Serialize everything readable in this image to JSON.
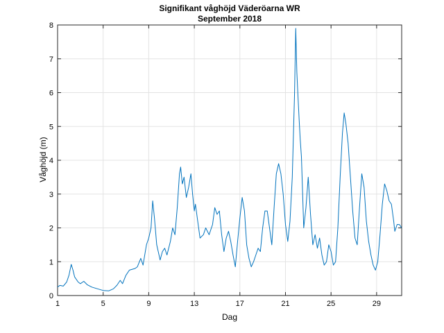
{
  "chart_data": {
    "type": "line",
    "title": "Signifikant våghöjd Väderöarna WR",
    "subtitle": "September 2018",
    "xlabel": "Dag",
    "ylabel": "Våghöjd (m)",
    "xlim": [
      1,
      31.2
    ],
    "ylim": [
      0,
      8
    ],
    "xticks": [
      1,
      5,
      9,
      13,
      17,
      21,
      25,
      29
    ],
    "yticks": [
      0,
      1,
      2,
      3,
      4,
      5,
      6,
      7,
      8
    ],
    "grid": true,
    "line_color": "#0072BD",
    "series": [
      {
        "points": [
          [
            1.0,
            0.25
          ],
          [
            1.2,
            0.3
          ],
          [
            1.5,
            0.28
          ],
          [
            1.8,
            0.4
          ],
          [
            2.0,
            0.6
          ],
          [
            2.2,
            0.92
          ],
          [
            2.35,
            0.75
          ],
          [
            2.5,
            0.55
          ],
          [
            2.8,
            0.4
          ],
          [
            3.0,
            0.35
          ],
          [
            3.3,
            0.42
          ],
          [
            3.6,
            0.32
          ],
          [
            4.0,
            0.25
          ],
          [
            4.5,
            0.2
          ],
          [
            5.0,
            0.15
          ],
          [
            5.5,
            0.14
          ],
          [
            5.9,
            0.2
          ],
          [
            6.2,
            0.3
          ],
          [
            6.5,
            0.45
          ],
          [
            6.7,
            0.35
          ],
          [
            7.0,
            0.6
          ],
          [
            7.3,
            0.75
          ],
          [
            7.8,
            0.8
          ],
          [
            8.0,
            0.85
          ],
          [
            8.3,
            1.1
          ],
          [
            8.5,
            0.9
          ],
          [
            8.8,
            1.5
          ],
          [
            9.0,
            1.7
          ],
          [
            9.2,
            2.0
          ],
          [
            9.35,
            2.8
          ],
          [
            9.5,
            2.3
          ],
          [
            9.7,
            1.5
          ],
          [
            9.9,
            1.2
          ],
          [
            10.0,
            1.05
          ],
          [
            10.2,
            1.3
          ],
          [
            10.4,
            1.4
          ],
          [
            10.6,
            1.2
          ],
          [
            10.9,
            1.6
          ],
          [
            11.1,
            2.0
          ],
          [
            11.3,
            1.8
          ],
          [
            11.5,
            2.6
          ],
          [
            11.7,
            3.6
          ],
          [
            11.8,
            3.8
          ],
          [
            11.95,
            3.3
          ],
          [
            12.1,
            3.5
          ],
          [
            12.3,
            2.9
          ],
          [
            12.5,
            3.2
          ],
          [
            12.7,
            3.6
          ],
          [
            12.85,
            3.0
          ],
          [
            13.0,
            2.5
          ],
          [
            13.1,
            2.7
          ],
          [
            13.3,
            2.2
          ],
          [
            13.5,
            1.7
          ],
          [
            13.8,
            1.8
          ],
          [
            14.0,
            2.0
          ],
          [
            14.3,
            1.8
          ],
          [
            14.6,
            2.1
          ],
          [
            14.8,
            2.6
          ],
          [
            15.0,
            2.4
          ],
          [
            15.2,
            2.5
          ],
          [
            15.4,
            1.8
          ],
          [
            15.6,
            1.3
          ],
          [
            15.8,
            1.7
          ],
          [
            16.0,
            1.9
          ],
          [
            16.2,
            1.6
          ],
          [
            16.4,
            1.2
          ],
          [
            16.6,
            0.85
          ],
          [
            16.8,
            1.6
          ],
          [
            17.0,
            2.3
          ],
          [
            17.2,
            2.9
          ],
          [
            17.4,
            2.5
          ],
          [
            17.6,
            1.5
          ],
          [
            17.8,
            1.1
          ],
          [
            18.0,
            0.85
          ],
          [
            18.2,
            1.0
          ],
          [
            18.4,
            1.2
          ],
          [
            18.6,
            1.4
          ],
          [
            18.8,
            1.3
          ],
          [
            19.0,
            2.0
          ],
          [
            19.2,
            2.5
          ],
          [
            19.4,
            2.5
          ],
          [
            19.6,
            2.0
          ],
          [
            19.8,
            1.5
          ],
          [
            20.0,
            2.6
          ],
          [
            20.2,
            3.6
          ],
          [
            20.4,
            3.9
          ],
          [
            20.6,
            3.6
          ],
          [
            20.8,
            3.0
          ],
          [
            21.0,
            2.1
          ],
          [
            21.2,
            1.6
          ],
          [
            21.4,
            2.2
          ],
          [
            21.6,
            3.5
          ],
          [
            21.8,
            6.0
          ],
          [
            21.9,
            7.9
          ],
          [
            22.0,
            6.6
          ],
          [
            22.1,
            5.9
          ],
          [
            22.2,
            5.2
          ],
          [
            22.3,
            4.6
          ],
          [
            22.4,
            4.1
          ],
          [
            22.6,
            2.0
          ],
          [
            22.8,
            2.6
          ],
          [
            23.0,
            3.5
          ],
          [
            23.2,
            2.4
          ],
          [
            23.4,
            1.5
          ],
          [
            23.6,
            1.8
          ],
          [
            23.8,
            1.4
          ],
          [
            24.0,
            1.7
          ],
          [
            24.2,
            1.2
          ],
          [
            24.4,
            0.9
          ],
          [
            24.6,
            1.0
          ],
          [
            24.8,
            1.5
          ],
          [
            25.0,
            1.3
          ],
          [
            25.2,
            0.9
          ],
          [
            25.4,
            1.0
          ],
          [
            25.6,
            2.0
          ],
          [
            25.8,
            3.5
          ],
          [
            26.0,
            4.8
          ],
          [
            26.15,
            5.4
          ],
          [
            26.3,
            5.1
          ],
          [
            26.5,
            4.5
          ],
          [
            26.7,
            3.5
          ],
          [
            26.9,
            2.5
          ],
          [
            27.1,
            1.7
          ],
          [
            27.3,
            1.5
          ],
          [
            27.5,
            2.6
          ],
          [
            27.7,
            3.6
          ],
          [
            27.9,
            3.2
          ],
          [
            28.1,
            2.2
          ],
          [
            28.3,
            1.6
          ],
          [
            28.5,
            1.2
          ],
          [
            28.7,
            0.9
          ],
          [
            28.9,
            0.75
          ],
          [
            29.1,
            1.0
          ],
          [
            29.3,
            1.8
          ],
          [
            29.5,
            2.7
          ],
          [
            29.7,
            3.3
          ],
          [
            29.9,
            3.1
          ],
          [
            30.1,
            2.8
          ],
          [
            30.3,
            2.7
          ],
          [
            30.5,
            2.2
          ],
          [
            30.6,
            1.9
          ],
          [
            30.8,
            2.1
          ],
          [
            31.0,
            2.1
          ],
          [
            31.2,
            2.0
          ]
        ]
      }
    ]
  }
}
